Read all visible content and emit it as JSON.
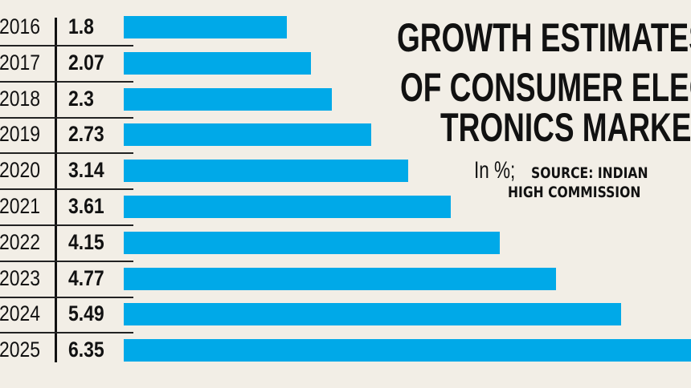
{
  "chart_data": {
    "type": "bar",
    "orientation": "horizontal",
    "title": "GROWTH ESTIMATES OF CONSUMER ELEC-TRONICS MARKET",
    "title_lines": [
      "GROWTH ESTIMATES",
      "OF CONSUMER ELEC-",
      "TRONICS MARKET"
    ],
    "unit_label": "In %;",
    "source": "SOURCE: INDIAN HIGH COMMISSION",
    "source_lines": [
      "SOURCE: INDIAN",
      "HIGH COMMISSION"
    ],
    "categories": [
      "2016",
      "2017",
      "2018",
      "2019",
      "2020",
      "2021",
      "2022",
      "2023",
      "2024",
      "2025"
    ],
    "values": [
      1.8,
      2.07,
      2.3,
      2.73,
      3.14,
      3.61,
      4.15,
      4.77,
      5.49,
      6.35
    ],
    "value_labels": [
      "1.8",
      "2.07",
      "2.3",
      "2.73",
      "3.14",
      "3.61",
      "4.15",
      "4.77",
      "5.49",
      "6.35"
    ],
    "bar_color": "#00a9e8",
    "background": "#f2eee6",
    "grid": false
  }
}
